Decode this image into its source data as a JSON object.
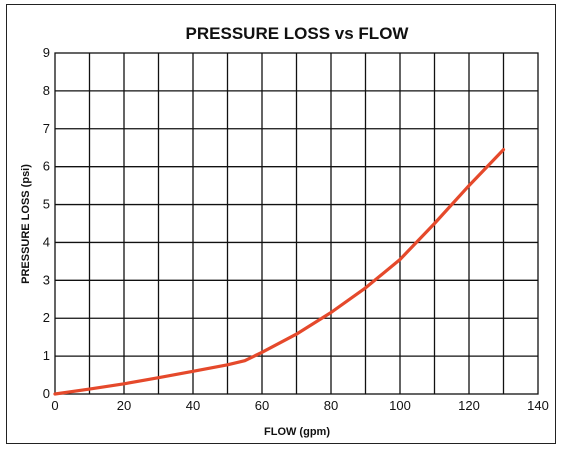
{
  "chart_data": {
    "type": "line",
    "title": "PRESSURE LOSS vs FLOW",
    "xlabel": "FLOW (gpm)",
    "ylabel": "PRESSURE LOSS (psi)",
    "xlim": [
      0,
      140
    ],
    "ylim": [
      0,
      9
    ],
    "x_ticks": [
      0,
      20,
      40,
      60,
      80,
      100,
      120,
      140
    ],
    "y_ticks": [
      0,
      1,
      2,
      3,
      4,
      5,
      6,
      7,
      8,
      9
    ],
    "x_gridlines_every": 10,
    "grid": true,
    "series": [
      {
        "color": "#e5492b",
        "x": [
          0,
          10,
          20,
          30,
          40,
          50,
          55,
          60,
          70,
          80,
          90,
          100,
          110,
          120,
          130
        ],
        "y": [
          0.0,
          0.13,
          0.27,
          0.43,
          0.6,
          0.77,
          0.88,
          1.1,
          1.58,
          2.15,
          2.8,
          3.55,
          4.5,
          5.5,
          6.45
        ]
      }
    ]
  }
}
